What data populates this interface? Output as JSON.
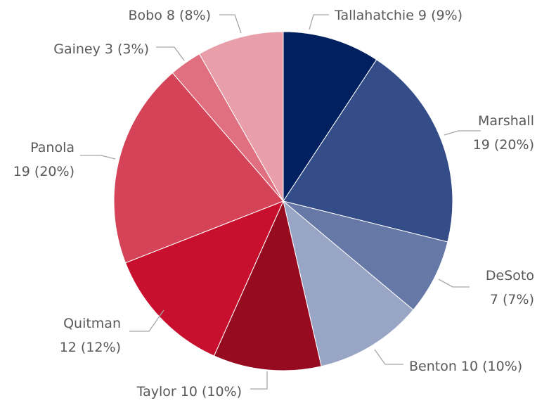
{
  "chart_data": {
    "type": "pie",
    "categories": [
      "Tallahatchie",
      "Marshall",
      "DeSoto",
      "Benton",
      "Taylor",
      "Quitman",
      "Panola",
      "Gainey",
      "Bobo"
    ],
    "values": [
      9,
      19,
      7,
      10,
      10,
      12,
      19,
      3,
      8
    ],
    "colors": [
      "#002060",
      "#344C87",
      "#6678A6",
      "#99A5C4",
      "#960B20",
      "#C8102E",
      "#D44357",
      "#E07080",
      "#E89FAA"
    ],
    "labels": [
      [
        "Tallahatchie 9 (9%)"
      ],
      [
        "Marshall",
        "19 (20%)"
      ],
      [
        "DeSoto",
        "7 (7%)"
      ],
      [
        "Benton 10 (10%)"
      ],
      [
        "Taylor 10 (10%)"
      ],
      [
        "Quitman",
        "12 (12%)"
      ],
      [
        "Panola",
        "19 (20%)"
      ],
      [
        "Gainey 3 (3%)"
      ],
      [
        "Bobo 8 (8%)"
      ]
    ],
    "start_angle": "top",
    "direction": "clockwise",
    "legend": "none"
  }
}
